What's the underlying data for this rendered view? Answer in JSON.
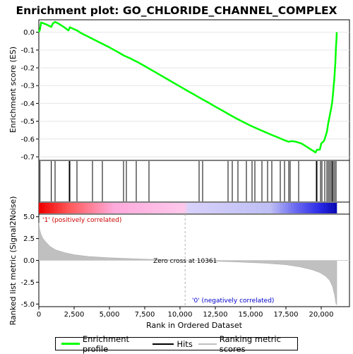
{
  "chart_data": {
    "type": "line",
    "title": "Enrichment plot: GO_CHLORIDE_CHANNEL_COMPLEX",
    "es_panel": {
      "ylabel": "Enrichment score (ES)",
      "ylim": [
        -0.72,
        0.07
      ],
      "yticks": [
        "0.0",
        "-0.1",
        "-0.2",
        "-0.3",
        "-0.4",
        "-0.5",
        "-0.6",
        "-0.7"
      ],
      "ytick_values": [
        0.0,
        -0.1,
        -0.2,
        -0.3,
        -0.4,
        -0.5,
        -0.6,
        -0.7
      ],
      "series": [
        {
          "name": "Enrichment profile",
          "color": "#00ff00",
          "points": [
            [
              0,
              0.0
            ],
            [
              80,
              0.015
            ],
            [
              160,
              0.055
            ],
            [
              500,
              0.045
            ],
            [
              880,
              0.03
            ],
            [
              1000,
              0.05
            ],
            [
              1150,
              0.058
            ],
            [
              1400,
              0.048
            ],
            [
              1800,
              0.028
            ],
            [
              2100,
              0.01
            ],
            [
              2200,
              0.028
            ],
            [
              2700,
              0.01
            ],
            [
              3000,
              -0.005
            ],
            [
              3500,
              -0.025
            ],
            [
              4000,
              -0.045
            ],
            [
              4500,
              -0.065
            ],
            [
              5000,
              -0.085
            ],
            [
              5500,
              -0.107
            ],
            [
              6000,
              -0.13
            ],
            [
              6500,
              -0.148
            ],
            [
              7000,
              -0.168
            ],
            [
              7500,
              -0.19
            ],
            [
              8000,
              -0.213
            ],
            [
              8500,
              -0.236
            ],
            [
              9000,
              -0.259
            ],
            [
              9500,
              -0.282
            ],
            [
              10000,
              -0.305
            ],
            [
              10500,
              -0.328
            ],
            [
              11000,
              -0.35
            ],
            [
              11500,
              -0.373
            ],
            [
              12000,
              -0.395
            ],
            [
              12500,
              -0.418
            ],
            [
              13000,
              -0.44
            ],
            [
              13500,
              -0.463
            ],
            [
              14000,
              -0.485
            ],
            [
              14500,
              -0.505
            ],
            [
              15000,
              -0.525
            ],
            [
              15500,
              -0.543
            ],
            [
              16000,
              -0.56
            ],
            [
              16500,
              -0.577
            ],
            [
              17000,
              -0.593
            ],
            [
              17400,
              -0.607
            ],
            [
              17700,
              -0.615
            ],
            [
              17900,
              -0.612
            ],
            [
              18200,
              -0.615
            ],
            [
              18600,
              -0.625
            ],
            [
              19000,
              -0.645
            ],
            [
              19300,
              -0.66
            ],
            [
              19600,
              -0.675
            ],
            [
              19700,
              -0.66
            ],
            [
              19900,
              -0.66
            ],
            [
              20000,
              -0.625
            ],
            [
              20200,
              -0.61
            ],
            [
              20300,
              -0.585
            ],
            [
              20400,
              -0.56
            ],
            [
              20500,
              -0.51
            ],
            [
              20600,
              -0.47
            ],
            [
              20700,
              -0.43
            ],
            [
              20780,
              -0.39
            ],
            [
              20840,
              -0.34
            ],
            [
              20880,
              -0.3
            ],
            [
              20920,
              -0.27
            ],
            [
              20960,
              -0.22
            ],
            [
              21000,
              -0.17
            ],
            [
              21040,
              -0.09
            ],
            [
              21080,
              -0.04
            ],
            [
              21100,
              0.0
            ]
          ]
        }
      ]
    },
    "hits": [
      80,
      880,
      1150,
      2150,
      2200,
      2700,
      3800,
      4500,
      6000,
      6200,
      6900,
      7800,
      11350,
      11600,
      13400,
      13700,
      14100,
      14700,
      15100,
      15300,
      15800,
      16200,
      16500,
      17100,
      17400,
      17700,
      17800,
      18400,
      19650,
      19700,
      19950,
      20050,
      20250,
      20400,
      20500,
      20600,
      20700,
      20780,
      20850,
      20950,
      21050
    ],
    "rank_panel": {
      "ylabel": "Ranked list metric (Signal2Noise)",
      "xlabel": "Rank in Ordered Dataset",
      "ylim": [
        -5.3,
        5.3
      ],
      "yticks": [
        "5.0",
        "2.5",
        "0.0",
        "-2.5",
        "-5.0"
      ],
      "ytick_values": [
        5.0,
        2.5,
        0.0,
        -2.5,
        -5.0
      ],
      "xlim": [
        0,
        22000
      ],
      "xticks": [
        "0",
        "2,500",
        "5,000",
        "7,500",
        "10,000",
        "12,500",
        "15,000",
        "17,500",
        "20,000"
      ],
      "xtick_values": [
        0,
        2500,
        5000,
        7500,
        10000,
        12500,
        15000,
        17500,
        20000
      ],
      "n_genes": 21100,
      "zero_cross": 10361,
      "zero_cross_label": "Zero cross at 10361",
      "pos_label": "'1' (positively correlated)",
      "neg_label": "'0' (negatively correlated)",
      "metric_points": [
        [
          0,
          4.3
        ],
        [
          50,
          3.6
        ],
        [
          150,
          3.0
        ],
        [
          300,
          2.5
        ],
        [
          500,
          2.1
        ],
        [
          800,
          1.6
        ],
        [
          1200,
          1.2
        ],
        [
          1800,
          0.9
        ],
        [
          2500,
          0.65
        ],
        [
          3500,
          0.45
        ],
        [
          5000,
          0.3
        ],
        [
          7000,
          0.17
        ],
        [
          9000,
          0.06
        ],
        [
          10361,
          0.0
        ],
        [
          12000,
          -0.07
        ],
        [
          14000,
          -0.18
        ],
        [
          16000,
          -0.32
        ],
        [
          17500,
          -0.5
        ],
        [
          18500,
          -0.75
        ],
        [
          19300,
          -1.05
        ],
        [
          19900,
          -1.4
        ],
        [
          20300,
          -1.8
        ],
        [
          20600,
          -2.3
        ],
        [
          20800,
          -3.0
        ],
        [
          20950,
          -4.0
        ],
        [
          21050,
          -5.0
        ],
        [
          21100,
          -5.1
        ]
      ]
    },
    "legend": {
      "items": [
        {
          "label": "Enrichment profile",
          "color": "#00ff00"
        },
        {
          "label": "Hits",
          "color": "#000000"
        },
        {
          "label": "Ranking metric scores",
          "color": "#c0c0c0"
        }
      ]
    }
  }
}
